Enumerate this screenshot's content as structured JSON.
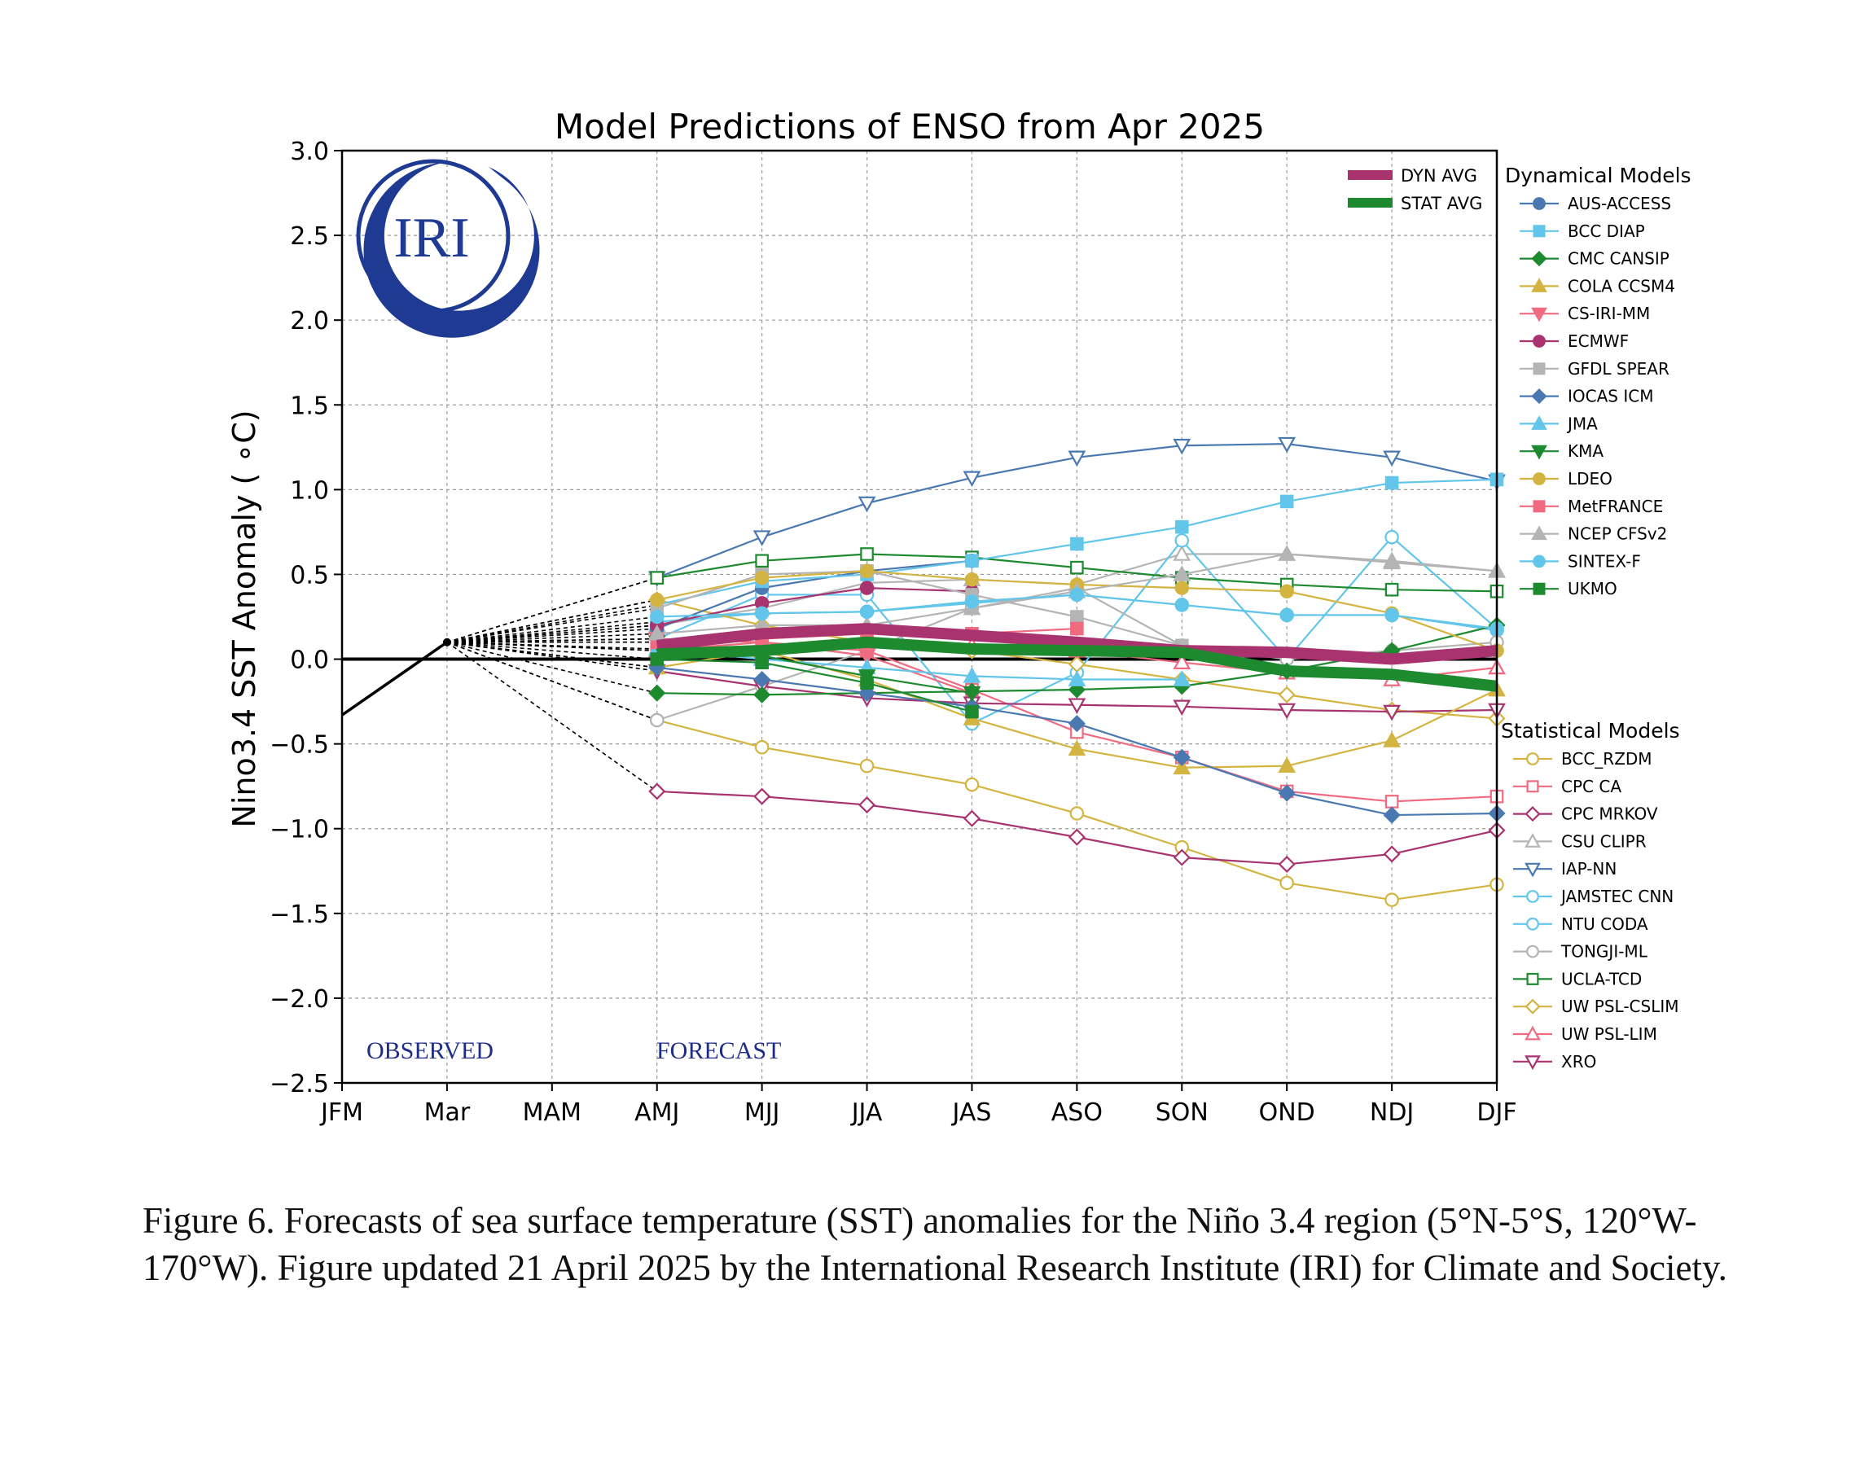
{
  "caption": "Figure 6. Forecasts of sea surface temperature (SST) anomalies for the Niño 3.4 region (5°N-5°S, 120°W-170°W). Figure updated 21 April 2025 by the International Research Institute (IRI) for Climate and Society.",
  "logo_text": "IRI",
  "colors": {
    "dyn_avg": "#a8336f",
    "stat_avg": "#1e8a30",
    "logo": "#1f3a93",
    "observed": "#000000",
    "text_annotation": "#1f2d8a"
  },
  "chart_data": {
    "type": "line",
    "title": "Model Predictions of ENSO from Apr 2025",
    "ylabel": "Nino3.4 SST Anomaly ( ∘C)",
    "ylim": [
      -2.5,
      3.0
    ],
    "yticks": [
      3.0,
      2.5,
      2.0,
      1.5,
      1.0,
      0.5,
      0.0,
      -0.5,
      -1.0,
      -1.5,
      -2.0,
      -2.5
    ],
    "ytick_labels": [
      "3.0",
      "2.5",
      "2.0",
      "1.5",
      "1.0",
      "0.5",
      "0.0",
      "−0.5",
      "−1.0",
      "−1.5",
      "−2.0",
      "−2.5"
    ],
    "categories": [
      "JFM",
      "Mar",
      "MAM",
      "AMJ",
      "MJJ",
      "JJA",
      "JAS",
      "ASO",
      "SON",
      "OND",
      "NDJ",
      "DJF"
    ],
    "grid": true,
    "annotations": {
      "observed": "OBSERVED",
      "forecast": "FORECAST"
    },
    "observed": {
      "x": [
        0,
        1
      ],
      "values": [
        -0.33,
        0.1
      ]
    },
    "forecast_start": {
      "x": 1,
      "value": 0.1
    },
    "legend_avg": [
      {
        "name": "DYN AVG",
        "color": "#a8336f"
      },
      {
        "name": "STAT AVG",
        "color": "#1e8a30"
      }
    ],
    "legend_dyn_title": "Dynamical Models",
    "legend_stat_title": "Statistical Models",
    "averages": [
      {
        "name": "DYN AVG",
        "color": "#a8336f",
        "values": [
          0.08,
          0.15,
          0.18,
          0.14,
          0.1,
          0.05,
          0.04,
          0.0,
          0.05
        ]
      },
      {
        "name": "STAT AVG",
        "color": "#1e8a30",
        "values": [
          0.03,
          0.05,
          0.1,
          0.06,
          0.05,
          0.04,
          -0.07,
          -0.09,
          -0.16
        ]
      }
    ],
    "dynamical_series": [
      {
        "name": "AUS-ACCESS",
        "color": "#4a78b0",
        "marker": "circle",
        "fill": true,
        "values": [
          0.18,
          0.42,
          0.52,
          0.58
        ]
      },
      {
        "name": "BCC DIAP",
        "color": "#62c6ea",
        "marker": "square",
        "fill": true,
        "values": [
          0.32,
          0.46,
          0.5,
          0.58,
          0.68,
          0.78,
          0.93,
          1.04,
          1.06
        ]
      },
      {
        "name": "CMC CANSIP",
        "color": "#1e8a30",
        "marker": "diamond",
        "fill": true,
        "values": [
          -0.2,
          -0.21,
          -0.2,
          -0.19,
          -0.18,
          -0.16,
          -0.07,
          0.05,
          0.2
        ]
      },
      {
        "name": "COLA CCSM4",
        "color": "#d4b440",
        "marker": "triangle-up",
        "fill": true,
        "values": [
          -0.05,
          0.05,
          -0.12,
          -0.35,
          -0.53,
          -0.64,
          -0.63,
          -0.48,
          -0.18
        ]
      },
      {
        "name": "CS-IRI-MM",
        "color": "#f06a80",
        "marker": "triangle-down",
        "fill": true,
        "values": [
          0.12,
          0.1,
          0.02,
          -0.2
        ]
      },
      {
        "name": "ECMWF",
        "color": "#a8336f",
        "marker": "circle",
        "fill": true,
        "values": [
          0.2,
          0.33,
          0.42,
          0.4
        ]
      },
      {
        "name": "GFDL SPEAR",
        "color": "#b4b4b4",
        "marker": "square",
        "fill": true,
        "values": [
          0.3,
          0.5,
          0.52,
          0.38,
          0.25,
          0.08
        ]
      },
      {
        "name": "IOCAS ICM",
        "color": "#4a78b0",
        "marker": "diamond",
        "fill": true,
        "values": [
          -0.05,
          -0.12,
          -0.2,
          -0.28,
          -0.38,
          -0.58,
          -0.79,
          -0.92,
          -0.91
        ]
      },
      {
        "name": "JMA",
        "color": "#62c6ea",
        "marker": "triangle-up",
        "fill": true,
        "values": [
          0.06,
          0.0,
          -0.05,
          -0.1,
          -0.12,
          -0.12
        ]
      },
      {
        "name": "KMA",
        "color": "#1e8a30",
        "marker": "triangle-down",
        "fill": true,
        "values": [
          0.1,
          0.02,
          -0.1,
          -0.2
        ]
      },
      {
        "name": "LDEO",
        "color": "#d4b440",
        "marker": "circle",
        "fill": true,
        "values": [
          0.35,
          0.48,
          0.52,
          0.47,
          0.44,
          0.42,
          0.4,
          0.27,
          0.05
        ]
      },
      {
        "name": "MetFRANCE",
        "color": "#f06a80",
        "marker": "square",
        "fill": true,
        "values": [
          0.1,
          0.12,
          0.15,
          0.15,
          0.18
        ]
      },
      {
        "name": "NCEP CFSv2",
        "color": "#b4b4b4",
        "marker": "triangle-up",
        "fill": true,
        "values": [
          0.15,
          0.2,
          0.2,
          0.3,
          0.4,
          0.5,
          0.62,
          0.57,
          0.52
        ]
      },
      {
        "name": "SINTEX-F",
        "color": "#62c6ea",
        "marker": "circle",
        "fill": true,
        "values": [
          0.25,
          0.27,
          0.28,
          0.34,
          0.38,
          0.32,
          0.26,
          0.26,
          0.18
        ]
      },
      {
        "name": "UKMO",
        "color": "#1e8a30",
        "marker": "square",
        "fill": true,
        "values": [
          0.0,
          -0.02,
          -0.14,
          -0.31
        ]
      }
    ],
    "statistical_series": [
      {
        "name": "BCC_RZDM",
        "color": "#d4b440",
        "marker": "circle",
        "fill": false,
        "values": [
          -0.36,
          -0.52,
          -0.63,
          -0.74,
          -0.91,
          -1.11,
          -1.32,
          -1.42,
          -1.33
        ]
      },
      {
        "name": "CPC CA",
        "color": "#f06a80",
        "marker": "square",
        "fill": false,
        "values": [
          0.05,
          0.1,
          0.05,
          -0.18,
          -0.43,
          -0.58,
          -0.78,
          -0.84,
          -0.81
        ]
      },
      {
        "name": "CPC MRKOV",
        "color": "#a8336f",
        "marker": "diamond",
        "fill": false,
        "values": [
          -0.78,
          -0.81,
          -0.86,
          -0.94,
          -1.05,
          -1.17,
          -1.21,
          -1.15,
          -1.01
        ]
      },
      {
        "name": "CSU CLIPR",
        "color": "#b4b4b4",
        "marker": "triangle-up",
        "fill": false,
        "values": [
          0.2,
          0.3,
          0.45,
          0.47,
          0.44,
          0.62,
          0.62,
          0.58,
          0.52
        ]
      },
      {
        "name": "IAP-NN",
        "color": "#4a78b0",
        "marker": "triangle-down",
        "fill": false,
        "values": [
          0.48,
          0.72,
          0.92,
          1.07,
          1.19,
          1.26,
          1.27,
          1.19,
          1.05
        ]
      },
      {
        "name": "JAMSTEC CNN",
        "color": "#62c6ea",
        "marker": "circle",
        "fill": false,
        "values": [
          0.12,
          0.38,
          0.38,
          -0.38,
          -0.08,
          0.7,
          0.0,
          0.72,
          0.18
        ]
      },
      {
        "name": "NTU CODA",
        "color": "#62c6ea",
        "marker": "circle",
        "fill": false,
        "values": [
          0.22,
          0.27,
          0.28,
          0.33,
          0.38,
          0.32,
          0.26,
          0.26,
          0.17
        ]
      },
      {
        "name": "TONGJI-ML",
        "color": "#b4b4b4",
        "marker": "circle",
        "fill": false,
        "values": [
          -0.36,
          -0.16,
          0.05,
          0.3,
          0.42,
          0.08,
          0.0,
          0.05,
          0.1
        ]
      },
      {
        "name": "UCLA-TCD",
        "color": "#1e8a30",
        "marker": "square",
        "fill": false,
        "values": [
          0.48,
          0.58,
          0.62,
          0.6,
          0.54,
          0.48,
          0.44,
          0.41,
          0.4
        ]
      },
      {
        "name": "UW PSL-CSLIM",
        "color": "#d4b440",
        "marker": "diamond",
        "fill": false,
        "values": [
          0.35,
          0.2,
          0.1,
          0.05,
          -0.03,
          -0.12,
          -0.21,
          -0.3,
          -0.35
        ]
      },
      {
        "name": "UW PSL-LIM",
        "color": "#f06a80",
        "marker": "triangle-up",
        "fill": false,
        "values": [
          0.05,
          0.08,
          0.1,
          0.08,
          0.05,
          -0.02,
          -0.08,
          -0.12,
          -0.05
        ]
      },
      {
        "name": "XRO",
        "color": "#a8336f",
        "marker": "triangle-down",
        "fill": false,
        "values": [
          -0.07,
          -0.16,
          -0.23,
          -0.26,
          -0.27,
          -0.28,
          -0.3,
          -0.31,
          -0.3
        ]
      }
    ]
  }
}
